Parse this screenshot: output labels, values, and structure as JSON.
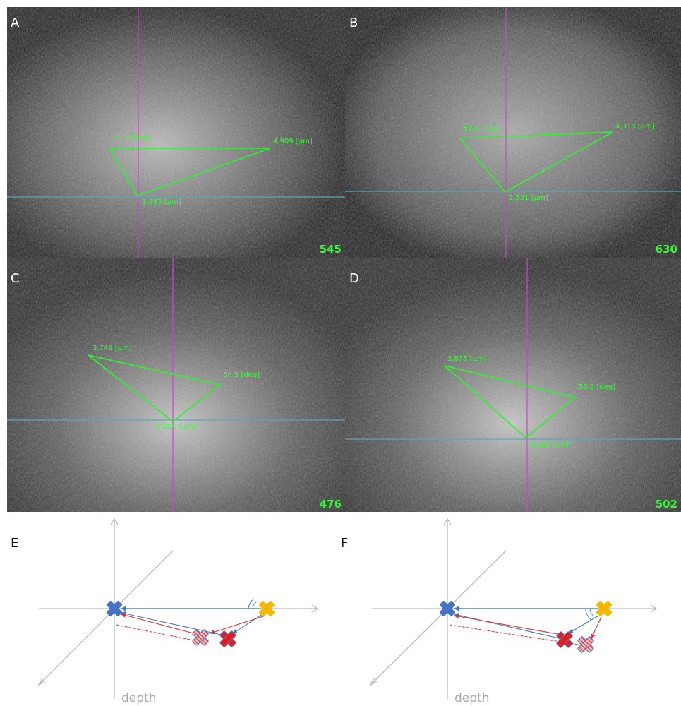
{
  "panels": [
    {
      "label": "A",
      "frame": "545",
      "angle": "58.3 [deg]",
      "far_length": "4,909 [µm]",
      "depth_length": "1,893 [µm]"
    },
    {
      "label": "B",
      "frame": "630",
      "angle": "52.1 [deg]",
      "far_length": "4,318 [µm]",
      "depth_length": "2,531 [µm]"
    },
    {
      "label": "C",
      "frame": "476",
      "angle": "56.5 [deg]",
      "far_length": "3,749 [µm]",
      "depth_length": "2,050 [µm]"
    },
    {
      "label": "D",
      "frame": "502",
      "angle": "53.2 [deg]",
      "far_length": "3,875 [µm]",
      "depth_length": "2,182 [µm]"
    }
  ],
  "diagrams": [
    {
      "label": "E",
      "axis_label": "depth"
    },
    {
      "label": "F",
      "axis_label": "depth"
    }
  ]
}
